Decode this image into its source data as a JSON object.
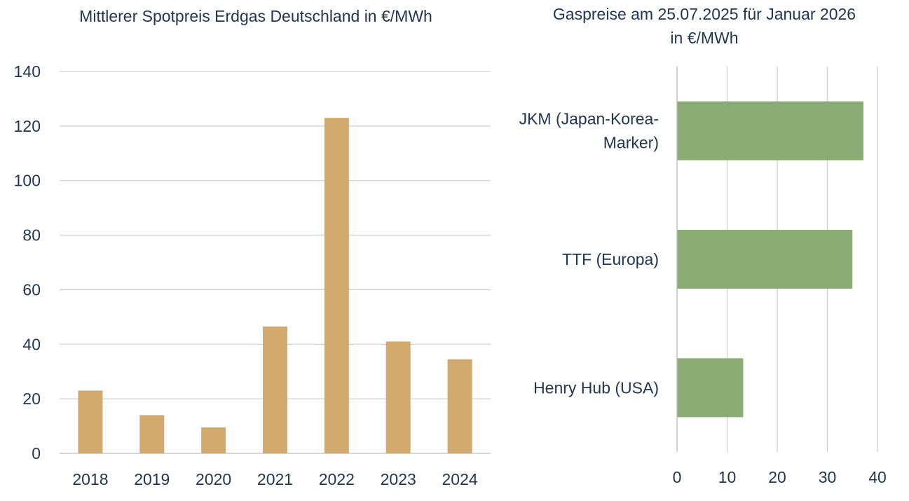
{
  "chart_data": [
    {
      "type": "bar",
      "title": "Mittlerer Spotpreis Erdgas Deutschland in €/MWh",
      "categories": [
        "2018",
        "2019",
        "2020",
        "2021",
        "2022",
        "2023",
        "2024"
      ],
      "values": [
        23,
        14,
        9.5,
        46.5,
        123,
        41,
        34.5
      ],
      "xlabel": "",
      "ylabel": "",
      "ylim": [
        0,
        140
      ],
      "yticks": [
        0,
        20,
        40,
        60,
        80,
        100,
        120,
        140
      ],
      "grid": true,
      "color": "#d2aa6d"
    },
    {
      "type": "bar",
      "orientation": "horizontal",
      "title": "Gaspreise am 25.07.2025 für Januar 2026 in €/MWh",
      "categories": [
        "JKM (Japan-Korea-Marker)",
        "TTF (Europa)",
        "Henry Hub (USA)"
      ],
      "category_lines": [
        [
          "JKM (Japan-Korea-",
          "Marker)"
        ],
        [
          "TTF (Europa)"
        ],
        [
          "Henry Hub (USA)"
        ]
      ],
      "values": [
        37.2,
        35,
        13.2
      ],
      "xlabel": "",
      "ylabel": "",
      "xlim": [
        0,
        40
      ],
      "xticks": [
        0,
        10,
        20,
        30,
        40
      ],
      "grid": true,
      "color": "#8aab74"
    }
  ]
}
